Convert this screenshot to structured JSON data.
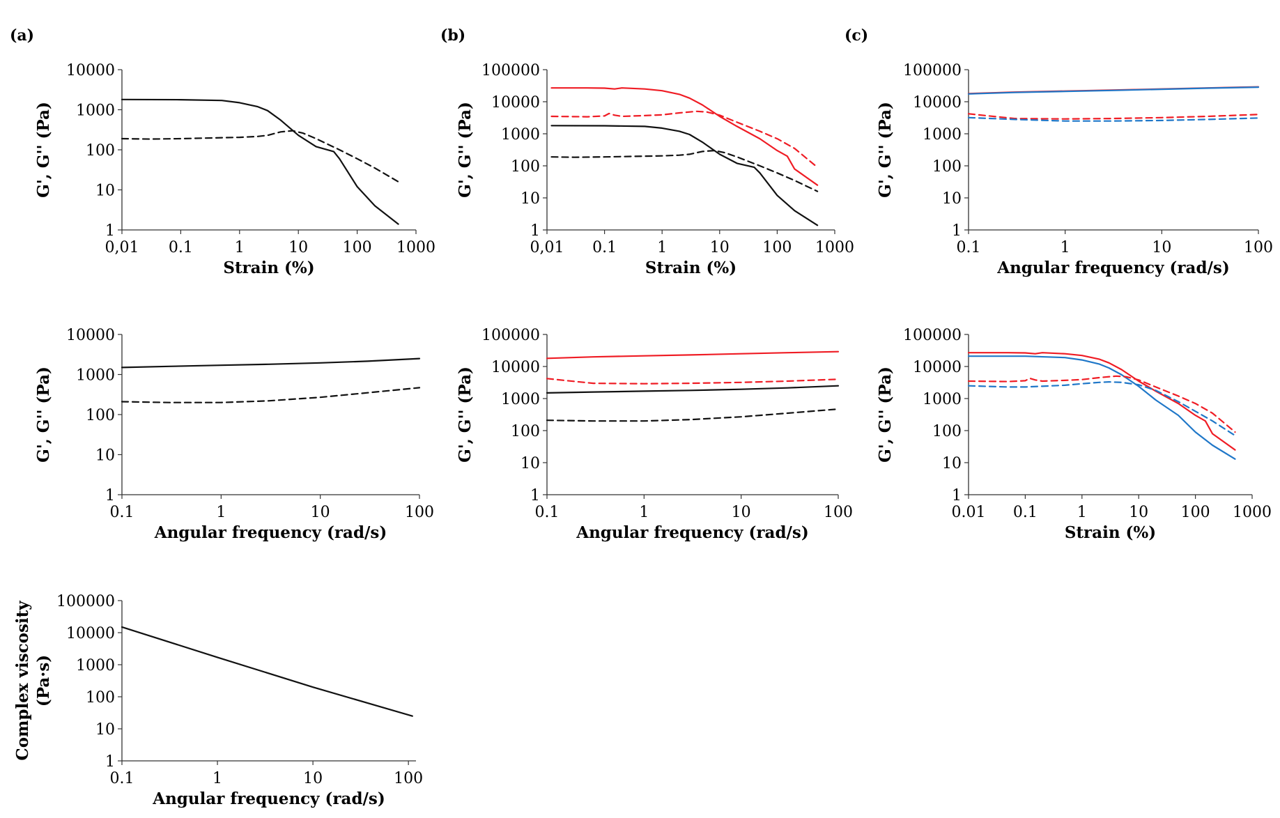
{
  "panel_labels": [
    "(a)",
    "(b)",
    "(c)"
  ],
  "colors": {
    "black": "#111111",
    "red": "#ef1c24",
    "blue": "#1f77c8"
  },
  "chart_data": [
    {
      "id": "a1",
      "type": "line",
      "panel": "(a)",
      "title": "",
      "xlabel": "Strain (%)",
      "ylabel": "G', G'' (Pa)",
      "xscale": "log",
      "yscale": "log",
      "xlim": [
        0.01,
        1000
      ],
      "ylim": [
        1,
        10000
      ],
      "xticks": [
        0.01,
        0.1,
        1,
        10,
        100,
        1000
      ],
      "xtick_labels": [
        "0,01",
        "0.1",
        "1",
        "10",
        "100",
        "1000"
      ],
      "yticks": [
        1,
        10,
        100,
        1000,
        10000
      ],
      "ytick_labels": [
        "1",
        "10",
        "100",
        "1000",
        "10000"
      ],
      "series": [
        {
          "name": "G'",
          "color": "black",
          "style": "solid",
          "x": [
            0.01,
            0.1,
            0.5,
            1,
            2,
            3,
            5,
            10,
            20,
            40,
            50,
            100,
            200,
            500
          ],
          "y": [
            1800,
            1780,
            1700,
            1500,
            1200,
            950,
            550,
            230,
            120,
            90,
            60,
            12,
            4,
            1.4
          ]
        },
        {
          "name": "G''",
          "color": "black",
          "style": "dashed",
          "x": [
            0.01,
            0.03,
            0.1,
            1,
            2,
            3,
            5,
            8,
            12,
            20,
            50,
            100,
            200,
            500
          ],
          "y": [
            190,
            185,
            190,
            205,
            215,
            230,
            280,
            300,
            260,
            190,
            100,
            60,
            35,
            16
          ]
        }
      ]
    },
    {
      "id": "a2",
      "type": "line",
      "panel": "(a)",
      "title": "",
      "xlabel": "Angular frequency (rad/s)",
      "ylabel": "G', G'' (Pa)",
      "xscale": "log",
      "yscale": "log",
      "xlim": [
        0.1,
        100
      ],
      "ylim": [
        1,
        10000
      ],
      "xticks": [
        0.1,
        1,
        10,
        100
      ],
      "xtick_labels": [
        "0.1",
        "1",
        "10",
        "100"
      ],
      "yticks": [
        1,
        10,
        100,
        1000,
        10000
      ],
      "ytick_labels": [
        "1",
        "10",
        "100",
        "1000",
        "10000"
      ],
      "series": [
        {
          "name": "G'",
          "color": "black",
          "style": "solid",
          "x": [
            0.1,
            0.3,
            1,
            3,
            10,
            30,
            100
          ],
          "y": [
            1500,
            1600,
            1700,
            1800,
            1950,
            2150,
            2500
          ]
        },
        {
          "name": "G''",
          "color": "black",
          "style": "dashed",
          "x": [
            0.1,
            0.3,
            1,
            3,
            10,
            30,
            100
          ],
          "y": [
            210,
            200,
            200,
            220,
            270,
            350,
            470
          ]
        }
      ]
    },
    {
      "id": "a3",
      "type": "line",
      "panel": "(a)",
      "title": "",
      "xlabel": "Angular frequency (rad/s)",
      "ylabel": "Complex viscosity (Pa·s)",
      "ylabel_lines": [
        "Complex viscosity",
        "(Pa·s)"
      ],
      "xscale": "log",
      "yscale": "log",
      "xlim": [
        0.1,
        120
      ],
      "ylim": [
        1,
        100000
      ],
      "xticks": [
        0.1,
        1,
        10,
        100
      ],
      "xtick_labels": [
        "0.1",
        "1",
        "10",
        "100"
      ],
      "yticks": [
        1,
        10,
        100,
        1000,
        10000,
        100000
      ],
      "ytick_labels": [
        "1",
        "10",
        "100",
        "1000",
        "10000",
        "100000"
      ],
      "series": [
        {
          "name": "Complex viscosity",
          "color": "black",
          "style": "solid",
          "x": [
            0.1,
            1,
            10,
            110
          ],
          "y": [
            15000,
            1700,
            200,
            25
          ]
        }
      ]
    },
    {
      "id": "b1",
      "type": "line",
      "panel": "(b)",
      "title": "",
      "xlabel": "Strain (%)",
      "ylabel": "G', G'' (Pa)",
      "xscale": "log",
      "yscale": "log",
      "xlim": [
        0.01,
        1000
      ],
      "ylim": [
        1,
        100000
      ],
      "xticks": [
        0.01,
        0.1,
        1,
        10,
        100,
        1000
      ],
      "xtick_labels": [
        "0,01",
        "0.1",
        "1",
        "10",
        "100",
        "1000"
      ],
      "yticks": [
        1,
        10,
        100,
        1000,
        10000,
        100000
      ],
      "ytick_labels": [
        "1",
        "10",
        "100",
        "1000",
        "10000",
        "100000"
      ],
      "series": [
        {
          "name": "G' red",
          "color": "red",
          "style": "solid",
          "x": [
            0.012,
            0.05,
            0.1,
            0.15,
            0.2,
            0.5,
            1,
            2,
            3,
            5,
            10,
            20,
            50,
            100,
            150,
            200,
            500
          ],
          "y": [
            27000,
            27000,
            26500,
            25000,
            27000,
            25000,
            22000,
            17000,
            13000,
            8000,
            3500,
            1700,
            700,
            300,
            200,
            80,
            25
          ]
        },
        {
          "name": "G'' red",
          "color": "red",
          "style": "dashed",
          "x": [
            0.012,
            0.05,
            0.1,
            0.12,
            0.15,
            0.2,
            0.5,
            1,
            2,
            4,
            6,
            10,
            20,
            50,
            100,
            200,
            500
          ],
          "y": [
            3500,
            3400,
            3600,
            4300,
            3800,
            3500,
            3700,
            3900,
            4500,
            5000,
            4800,
            3800,
            2300,
            1200,
            700,
            350,
            90
          ]
        },
        {
          "name": "G' black",
          "color": "black",
          "style": "solid",
          "x": [
            0.012,
            0.1,
            0.5,
            1,
            2,
            3,
            5,
            10,
            20,
            40,
            50,
            100,
            200,
            500
          ],
          "y": [
            1800,
            1780,
            1700,
            1500,
            1200,
            950,
            550,
            230,
            120,
            90,
            60,
            12,
            4,
            1.4
          ]
        },
        {
          "name": "G'' black",
          "color": "black",
          "style": "dashed",
          "x": [
            0.012,
            0.03,
            0.1,
            1,
            2,
            3,
            5,
            8,
            12,
            20,
            50,
            100,
            200,
            500
          ],
          "y": [
            190,
            185,
            190,
            205,
            215,
            230,
            280,
            300,
            260,
            190,
            100,
            60,
            35,
            16
          ]
        }
      ]
    },
    {
      "id": "b2",
      "type": "line",
      "panel": "(b)",
      "title": "",
      "xlabel": "Angular frequency (rad/s)",
      "ylabel": "G', G'' (Pa)",
      "xscale": "log",
      "yscale": "log",
      "xlim": [
        0.1,
        100
      ],
      "ylim": [
        1,
        100000
      ],
      "xticks": [
        0.1,
        1,
        10,
        100
      ],
      "xtick_labels": [
        "0.1",
        "1",
        "10",
        "100"
      ],
      "yticks": [
        1,
        10,
        100,
        1000,
        10000,
        100000
      ],
      "ytick_labels": [
        "1",
        "10",
        "100",
        "1000",
        "10000",
        "100000"
      ],
      "series": [
        {
          "name": "G' red",
          "color": "red",
          "style": "solid",
          "x": [
            0.1,
            0.3,
            1,
            3,
            10,
            30,
            100
          ],
          "y": [
            18000,
            20000,
            21500,
            23000,
            25000,
            27000,
            29000
          ]
        },
        {
          "name": "G'' red",
          "color": "red",
          "style": "dashed",
          "x": [
            0.1,
            0.15,
            0.3,
            1,
            3,
            10,
            30,
            100
          ],
          "y": [
            4200,
            3700,
            3000,
            2900,
            3000,
            3200,
            3500,
            4000
          ]
        },
        {
          "name": "G' black",
          "color": "black",
          "style": "solid",
          "x": [
            0.1,
            0.3,
            1,
            3,
            10,
            30,
            100
          ],
          "y": [
            1500,
            1600,
            1700,
            1800,
            1950,
            2150,
            2500
          ]
        },
        {
          "name": "G'' black",
          "color": "black",
          "style": "dashed",
          "x": [
            0.1,
            0.3,
            1,
            3,
            10,
            30,
            100
          ],
          "y": [
            210,
            200,
            200,
            220,
            270,
            350,
            470
          ]
        }
      ]
    },
    {
      "id": "c1",
      "type": "line",
      "panel": "(c)",
      "title": "",
      "xlabel": "Angular frequency (rad/s)",
      "ylabel": "G', G'' (Pa)",
      "xscale": "log",
      "yscale": "log",
      "xlim": [
        0.1,
        100
      ],
      "ylim": [
        1,
        100000
      ],
      "xticks": [
        0.1,
        1,
        10,
        100
      ],
      "xtick_labels": [
        "0.1",
        "1",
        "10",
        "100"
      ],
      "yticks": [
        1,
        10,
        100,
        1000,
        10000,
        100000
      ],
      "ytick_labels": [
        "1",
        "10",
        "100",
        "1000",
        "10000",
        "100000"
      ],
      "series": [
        {
          "name": "G' red",
          "color": "red",
          "style": "solid",
          "x": [
            0.1,
            0.3,
            1,
            3,
            10,
            30,
            100
          ],
          "y": [
            18000,
            20000,
            21500,
            23000,
            25000,
            27000,
            29000
          ]
        },
        {
          "name": "G' blue",
          "color": "blue",
          "style": "solid",
          "x": [
            0.1,
            0.3,
            1,
            3,
            10,
            30,
            100
          ],
          "y": [
            17500,
            19500,
            21000,
            22500,
            24500,
            26500,
            28500
          ]
        },
        {
          "name": "G'' red",
          "color": "red",
          "style": "dashed",
          "x": [
            0.1,
            0.15,
            0.3,
            1,
            3,
            10,
            30,
            100
          ],
          "y": [
            4200,
            3700,
            3000,
            2900,
            3000,
            3200,
            3500,
            4000
          ]
        },
        {
          "name": "G'' blue",
          "color": "blue",
          "style": "dashed",
          "x": [
            0.1,
            0.3,
            1,
            3,
            10,
            30,
            100
          ],
          "y": [
            3200,
            2800,
            2500,
            2500,
            2600,
            2800,
            3100
          ]
        }
      ]
    },
    {
      "id": "c2",
      "type": "line",
      "panel": "(c)",
      "title": "",
      "xlabel": "Strain (%)",
      "ylabel": "G', G'' (Pa)",
      "xscale": "log",
      "yscale": "log",
      "xlim": [
        0.01,
        1000
      ],
      "ylim": [
        1,
        100000
      ],
      "xticks": [
        0.01,
        0.1,
        1,
        10,
        100,
        1000
      ],
      "xtick_labels": [
        "0.01",
        "0.1",
        "1",
        "10",
        "100",
        "1000"
      ],
      "yticks": [
        1,
        10,
        100,
        1000,
        10000,
        100000
      ],
      "ytick_labels": [
        "1",
        "10",
        "100",
        "1000",
        "10000",
        "100000"
      ],
      "series": [
        {
          "name": "G' red",
          "color": "red",
          "style": "solid",
          "x": [
            0.01,
            0.05,
            0.1,
            0.15,
            0.2,
            0.5,
            1,
            2,
            3,
            5,
            10,
            20,
            50,
            100,
            150,
            200,
            500
          ],
          "y": [
            27000,
            27000,
            26500,
            25000,
            27000,
            25000,
            22000,
            17000,
            13000,
            8000,
            3500,
            1700,
            700,
            300,
            200,
            80,
            25
          ]
        },
        {
          "name": "G' blue",
          "color": "blue",
          "style": "solid",
          "x": [
            0.01,
            0.1,
            0.5,
            1,
            2,
            3,
            5,
            10,
            20,
            50,
            100,
            200,
            500
          ],
          "y": [
            21000,
            21000,
            19000,
            16000,
            12000,
            9000,
            5500,
            2400,
            900,
            300,
            90,
            35,
            13
          ]
        },
        {
          "name": "G'' red",
          "color": "red",
          "style": "dashed",
          "x": [
            0.01,
            0.05,
            0.1,
            0.12,
            0.15,
            0.2,
            0.5,
            1,
            2,
            4,
            6,
            10,
            20,
            50,
            100,
            200,
            500
          ],
          "y": [
            3500,
            3400,
            3600,
            4300,
            3800,
            3500,
            3700,
            3900,
            4500,
            5000,
            4800,
            3800,
            2300,
            1200,
            700,
            350,
            90
          ]
        },
        {
          "name": "G'' blue",
          "color": "blue",
          "style": "dashed",
          "x": [
            0.01,
            0.05,
            0.1,
            0.5,
            1,
            2,
            3,
            5,
            10,
            20,
            50,
            100,
            200,
            500
          ],
          "y": [
            2500,
            2300,
            2300,
            2600,
            2900,
            3200,
            3300,
            3200,
            2700,
            1800,
            800,
            400,
            200,
            70
          ]
        }
      ]
    }
  ]
}
